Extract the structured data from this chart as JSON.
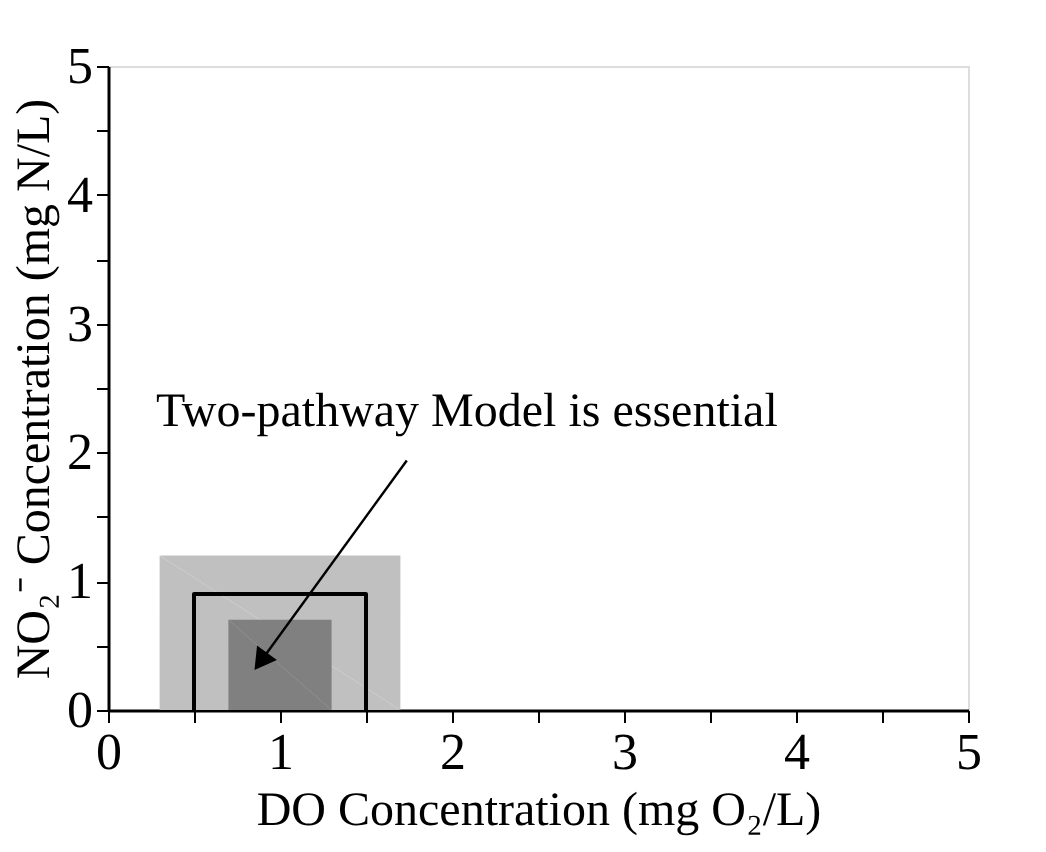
{
  "chart_data": {
    "type": "area",
    "xlabel": "DO Concentration (mg O₂/L)",
    "ylabel": "NO₂⁻ Concentration (mg N/L)",
    "series": [
      {
        "color": "#c0c0c0",
        "x": [
          0.3,
          1.7
        ],
        "values": [
          1.2,
          1.2
        ]
      },
      {
        "color": "#808080",
        "x": [
          0.7,
          1.3
        ],
        "values": [
          0.7,
          0.7
        ]
      },
      {
        "type": "line",
        "color": "#000000",
        "x": [
          0.5,
          0.5,
          1.5,
          1.5
        ],
        "values": [
          0,
          0.9,
          0.9,
          0
        ]
      }
    ],
    "annotations": [
      {
        "text": "Two-pathway Model is essential",
        "x": 0.9,
        "y": 0.4
      }
    ],
    "xlim": [
      0,
      5
    ],
    "ylim": [
      0,
      5
    ],
    "xticks": [
      0,
      {
        "value": 0.5,
        "label": null
      },
      1,
      {
        "value": 1.5,
        "label": null
      },
      2,
      {
        "value": 2.5,
        "label": null
      },
      3,
      {
        "value": 3.5,
        "label": null
      },
      4,
      {
        "value": 4.5,
        "label": null
      },
      5
    ],
    "yticks": [
      0,
      {
        "value": 0.5,
        "label": null
      },
      1,
      {
        "value": 1.5,
        "label": null
      },
      2,
      {
        "value": 2.5,
        "label": null
      },
      3,
      {
        "value": 3.5,
        "label": null
      },
      4,
      {
        "value": 4.5,
        "label": null
      },
      5
    ],
    "grid": false
  }
}
